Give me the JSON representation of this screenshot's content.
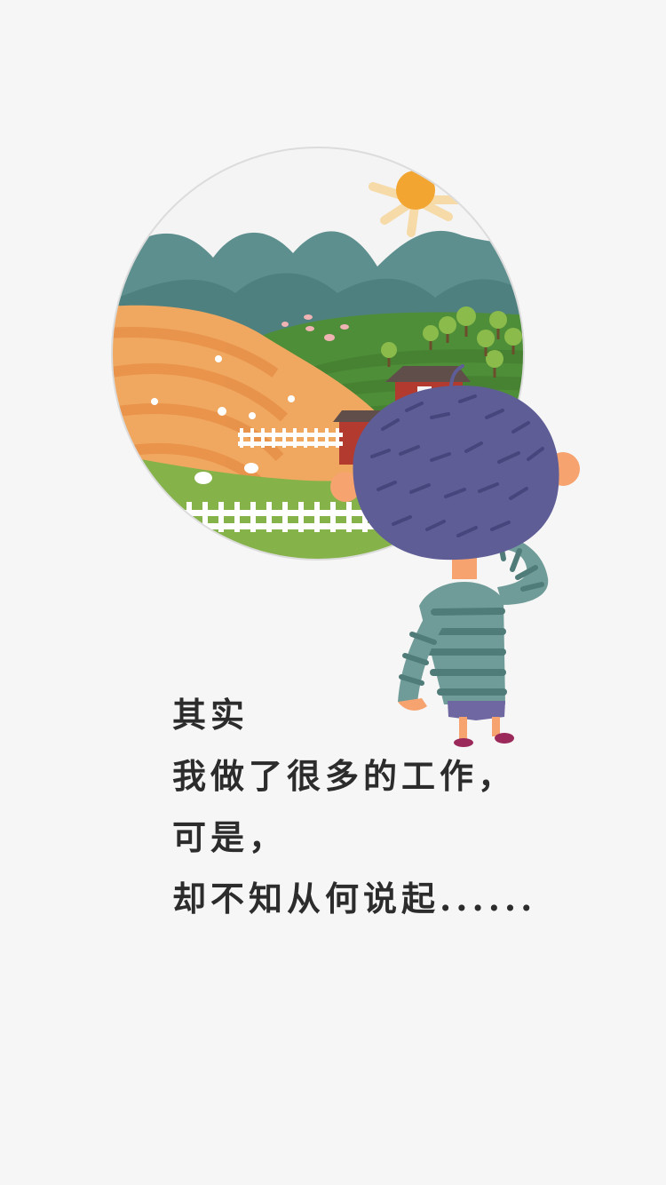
{
  "story": {
    "lines": [
      "其实",
      "我做了很多的工作，",
      "可是，",
      "却不知从何说起......"
    ]
  },
  "illustration": {
    "scene": "countryside-view-with-boy",
    "colors": {
      "background": "#f6f6f6",
      "sky": "#f4f4f4",
      "sun": "#f2a530",
      "mountains_far": "#5d8f8e",
      "mountains_near": "#4d7f80",
      "field": "#f0a860",
      "grass": "#6fa63c",
      "barn": "#b23a2e",
      "hair": "#5e5d96",
      "sweater": "#6f9c98",
      "skin": "#f6a36f"
    }
  }
}
